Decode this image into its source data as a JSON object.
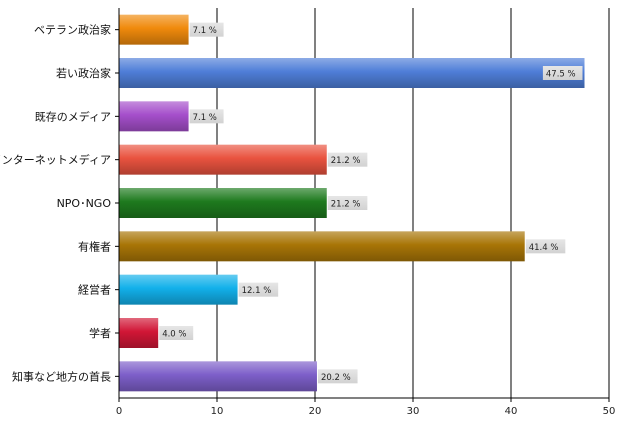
{
  "chart_data": {
    "type": "bar",
    "orientation": "horizontal",
    "categories": [
      "ベテラン政治家",
      "若い政治家",
      "既存のメディア",
      "インターネットメディア",
      "NPO･NGO",
      "有権者",
      "経営者",
      "学者",
      "知事など地方の首長"
    ],
    "values": [
      7.1,
      47.5,
      7.1,
      21.2,
      21.2,
      41.4,
      12.1,
      4.0,
      20.2
    ],
    "data_labels": [
      "7.1 %",
      "47.5 %",
      "7.1 %",
      "21.2 %",
      "21.2 %",
      "41.4 %",
      "12.1 %",
      "4.0 %",
      "20.2 %"
    ],
    "colors": [
      "#f08a0c",
      "#4f7ed8",
      "#a54fcb",
      "#e9533f",
      "#1e7a1e",
      "#a87506",
      "#12b0ea",
      "#d11636",
      "#7d5fc9"
    ],
    "xlim": [
      0,
      50
    ],
    "xticks": [
      0,
      10,
      20,
      30,
      40,
      50
    ],
    "grid": true,
    "title": "",
    "xlabel": "",
    "ylabel": ""
  }
}
